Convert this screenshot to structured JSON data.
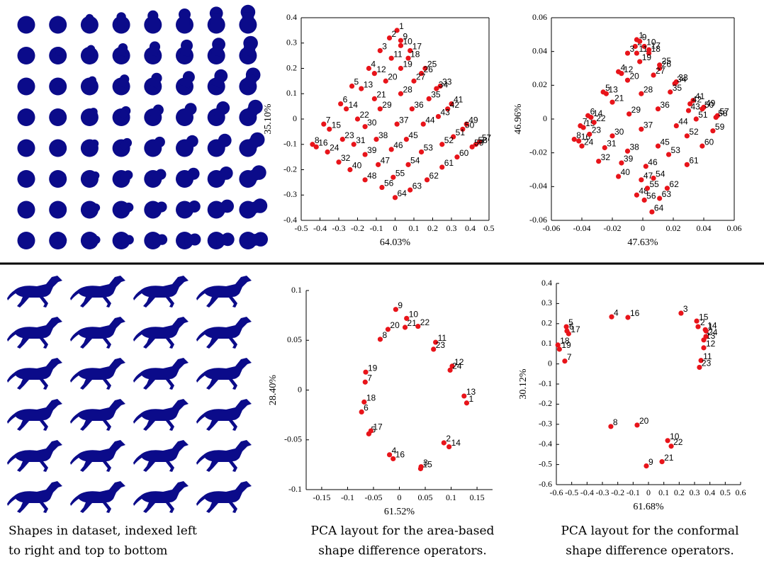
{
  "chart_data": [
    {
      "type": "scatter",
      "xlabel": "64.03%",
      "ylabel": "35.10%",
      "box": true,
      "color": "#e8141a",
      "xlim": [
        -0.5,
        0.5
      ],
      "ylim": [
        -0.4,
        0.4
      ],
      "xticks": [
        -0.5,
        -0.4,
        -0.3,
        -0.2,
        -0.1,
        0,
        0.1,
        0.2,
        0.3,
        0.4,
        0.5
      ],
      "yticks": [
        -0.4,
        -0.3,
        -0.2,
        -0.1,
        0,
        0.1,
        0.2,
        0.3,
        0.4
      ],
      "x": [
        0.01,
        -0.03,
        -0.08,
        -0.14,
        -0.23,
        -0.29,
        -0.38,
        -0.44,
        0.03,
        0.03,
        -0.02,
        -0.11,
        -0.18,
        -0.26,
        -0.35,
        -0.42,
        0.08,
        0.07,
        0.03,
        -0.05,
        -0.11,
        -0.2,
        -0.28,
        -0.36,
        0.16,
        0.14,
        0.1,
        0.03,
        -0.08,
        -0.16,
        -0.22,
        -0.3,
        0.24,
        0.22,
        0.18,
        0.09,
        0.01,
        -0.1,
        -0.16,
        -0.24,
        0.3,
        0.28,
        0.23,
        0.15,
        0.06,
        -0.02,
        -0.09,
        -0.16,
        0.38,
        0.36,
        0.31,
        0.25,
        0.14,
        0.07,
        -0.01,
        -0.07,
        0.45,
        0.43,
        0.41,
        0.33,
        0.25,
        0.17,
        0.08,
        0
      ],
      "values": [
        0.35,
        0.32,
        0.27,
        0.2,
        0.13,
        0.06,
        -0.02,
        -0.1,
        0.31,
        0.29,
        0.24,
        0.18,
        0.12,
        0.04,
        -0.04,
        -0.11,
        0.27,
        0.24,
        0.2,
        0.15,
        0.08,
        0,
        -0.08,
        -0.13,
        0.2,
        0.18,
        0.15,
        0.1,
        0.04,
        -0.03,
        -0.1,
        -0.17,
        0.13,
        0.12,
        0.08,
        0.04,
        -0.02,
        -0.08,
        -0.14,
        -0.2,
        0.06,
        0.04,
        0.01,
        -0.02,
        -0.08,
        -0.12,
        -0.18,
        -0.24,
        -0.02,
        -0.04,
        -0.07,
        -0.1,
        -0.13,
        -0.18,
        -0.23,
        -0.27,
        -0.09,
        -0.1,
        -0.11,
        -0.15,
        -0.19,
        -0.24,
        -0.28,
        -0.31
      ],
      "point_labels": [
        1,
        2,
        3,
        4,
        5,
        6,
        7,
        8,
        9,
        10,
        11,
        12,
        13,
        14,
        15,
        16,
        17,
        18,
        19,
        20,
        21,
        22,
        23,
        24,
        25,
        26,
        27,
        28,
        29,
        30,
        31,
        32,
        33,
        34,
        35,
        36,
        37,
        38,
        39,
        40,
        41,
        42,
        43,
        44,
        45,
        46,
        47,
        48,
        49,
        50,
        51,
        52,
        53,
        54,
        55,
        56,
        57,
        58,
        59,
        60,
        61,
        62,
        63,
        64
      ]
    },
    {
      "type": "scatter",
      "xlabel": "47.63%",
      "ylabel": "46.96%",
      "box": true,
      "color": "#e8141a",
      "xlim": [
        -0.06,
        0.06
      ],
      "ylim": [
        -0.06,
        0.06
      ],
      "xticks": [
        -0.06,
        -0.04,
        -0.02,
        0,
        0.02,
        0.04,
        0.06
      ],
      "yticks": [
        -0.06,
        -0.04,
        -0.02,
        0,
        0.02,
        0.04,
        0.06
      ],
      "x": [
        -0.004,
        -0.005,
        -0.01,
        -0.016,
        -0.026,
        -0.036,
        -0.041,
        -0.045,
        -0.002,
        0.001,
        -0.004,
        -0.014,
        -0.024,
        -0.034,
        -0.039,
        -0.042,
        0.004,
        0.004,
        -0.002,
        -0.01,
        -0.02,
        -0.032,
        -0.035,
        -0.04,
        0.011,
        0.011,
        0.007,
        -0.001,
        -0.009,
        -0.02,
        -0.025,
        -0.029,
        0.022,
        0.021,
        0.018,
        0.01,
        -0.001,
        -0.01,
        -0.014,
        -0.016,
        0.033,
        0.031,
        0.03,
        0.022,
        0.01,
        0.002,
        -0.001,
        -0.004,
        0.04,
        0.039,
        0.035,
        0.029,
        0.017,
        0.007,
        0.003,
        0.001,
        0.049,
        0.048,
        0.046,
        0.039,
        0.029,
        0.016,
        0.011,
        0.006
      ],
      "values": [
        0.047,
        0.043,
        0.039,
        0.028,
        0.016,
        0.002,
        -0.004,
        -0.012,
        0.046,
        0.043,
        0.039,
        0.027,
        0.015,
        0.001,
        -0.005,
        -0.013,
        0.041,
        0.039,
        0.034,
        0.023,
        0.01,
        -0.002,
        -0.009,
        -0.016,
        0.032,
        0.03,
        0.026,
        0.015,
        0.003,
        -0.01,
        -0.017,
        -0.025,
        0.022,
        0.021,
        0.016,
        0.006,
        -0.006,
        -0.019,
        -0.026,
        -0.034,
        0.011,
        0.009,
        0.005,
        -0.004,
        -0.016,
        -0.028,
        -0.036,
        -0.045,
        0.007,
        0.006,
        0,
        -0.01,
        -0.021,
        -0.035,
        -0.041,
        -0.048,
        0.002,
        0.001,
        -0.007,
        -0.016,
        -0.027,
        -0.041,
        -0.047,
        -0.055
      ],
      "point_labels": [
        1,
        2,
        3,
        4,
        5,
        6,
        7,
        8,
        9,
        10,
        11,
        12,
        13,
        14,
        15,
        16,
        17,
        18,
        19,
        20,
        21,
        22,
        23,
        24,
        25,
        26,
        27,
        28,
        29,
        30,
        31,
        32,
        33,
        34,
        35,
        36,
        37,
        38,
        39,
        40,
        41,
        42,
        43,
        44,
        45,
        46,
        47,
        48,
        49,
        50,
        51,
        52,
        53,
        54,
        55,
        56,
        57,
        58,
        59,
        60,
        61,
        62,
        63,
        64
      ]
    },
    {
      "type": "scatter",
      "xlabel": "61.52%",
      "ylabel": "28.40%",
      "box": false,
      "color": "#e8141a",
      "xlim": [
        -0.18,
        0.18
      ],
      "ylim": [
        -0.1,
        0.1
      ],
      "xticks": [
        -0.15,
        -0.1,
        -0.05,
        0,
        0.05,
        0.1,
        0.15
      ],
      "yticks": [
        -0.1,
        -0.05,
        0,
        0.05,
        0.1
      ],
      "x": [
        0.13,
        0.086,
        0.042,
        -0.019,
        -0.059,
        -0.073,
        -0.066,
        -0.037,
        -0.007,
        0.014,
        0.07,
        0.102,
        0.125,
        0.096,
        0.041,
        -0.012,
        -0.055,
        -0.068,
        -0.065,
        -0.022,
        0.011,
        0.036,
        0.066,
        0.098
      ],
      "values": [
        -0.013,
        -0.053,
        -0.077,
        -0.065,
        -0.044,
        -0.022,
        0.008,
        0.051,
        0.081,
        0.072,
        0.048,
        0.024,
        -0.006,
        -0.057,
        -0.079,
        -0.069,
        -0.041,
        -0.012,
        0.018,
        0.061,
        0.063,
        0.064,
        0.041,
        0.02
      ],
      "point_labels": [
        1,
        2,
        3,
        4,
        5,
        6,
        7,
        8,
        9,
        10,
        11,
        12,
        13,
        14,
        15,
        16,
        17,
        18,
        19,
        20,
        21,
        22,
        23,
        24
      ]
    },
    {
      "type": "scatter",
      "xlabel": "61.68%",
      "ylabel": "30.12%",
      "box": false,
      "color": "#e8141a",
      "xlim": [
        -0.6,
        0.6
      ],
      "ylim": [
        -0.6,
        0.4
      ],
      "xticks": [
        -0.6,
        -0.5,
        -0.4,
        -0.3,
        -0.2,
        -0.1,
        0,
        0.1,
        0.2,
        0.3,
        0.4,
        0.5,
        0.6
      ],
      "yticks": [
        -0.6,
        -0.5,
        -0.4,
        -0.3,
        -0.2,
        -0.1,
        0,
        0.1,
        0.2,
        0.3,
        0.4
      ],
      "x": [
        0.375,
        0.323,
        0.212,
        -0.24,
        -0.535,
        -0.531,
        -0.545,
        -0.245,
        -0.014,
        0.125,
        0.342,
        0.36,
        0.36,
        0.37,
        0.314,
        -0.134,
        -0.52,
        -0.59,
        -0.58,
        -0.074,
        0.088,
        0.148,
        0.332,
        0.374
      ],
      "values": [
        0.164,
        0.185,
        0.252,
        0.234,
        0.185,
        0.164,
        0.014,
        -0.311,
        -0.507,
        -0.381,
        0.017,
        0.08,
        0.119,
        0.17,
        0.213,
        0.231,
        0.15,
        0.094,
        0.073,
        -0.304,
        -0.486,
        -0.409,
        -0.017,
        0.136
      ],
      "point_labels": [
        1,
        2,
        3,
        4,
        5,
        6,
        7,
        8,
        9,
        10,
        11,
        12,
        13,
        14,
        15,
        16,
        17,
        18,
        19,
        20,
        21,
        22,
        23,
        24
      ]
    }
  ],
  "captions": [
    [
      "Shapes in dataset, indexed left",
      "to right and top to bottom"
    ],
    [
      "PCA layout for the area-based",
      "shape difference operators."
    ],
    [
      "PCA layout for the conformal",
      "shape difference operators."
    ]
  ]
}
